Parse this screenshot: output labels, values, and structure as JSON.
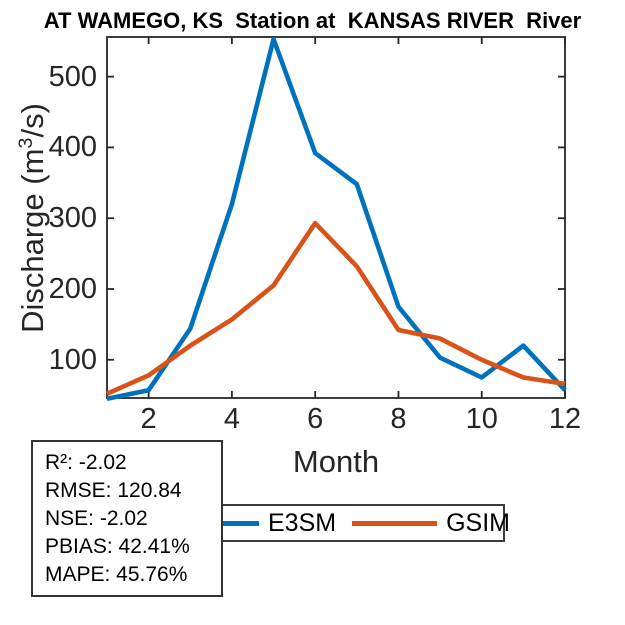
{
  "title": "AT WAMEGO, KS  Station at  KANSAS RIVER  River",
  "chart_data": {
    "type": "line",
    "title": "AT WAMEGO, KS  Station at  KANSAS RIVER  River",
    "x": [
      1,
      2,
      3,
      4,
      5,
      6,
      7,
      8,
      9,
      10,
      11,
      12
    ],
    "series": [
      {
        "name": "E3SM",
        "color": "#0072BD",
        "values": [
          45,
          57,
          144,
          320,
          553,
          392,
          348,
          175,
          103,
          75,
          120,
          57
        ]
      },
      {
        "name": "GSIM",
        "color": "#D95319",
        "values": [
          52,
          78,
          120,
          157,
          205,
          293,
          232,
          142,
          130,
          100,
          75,
          66
        ]
      }
    ],
    "xlabel": "Month",
    "ylabel": "Discharge (m3/s)",
    "ylabel_parts": {
      "pre": "Discharge (m",
      "sup": "3",
      "post": "/s)"
    },
    "xlim": [
      1,
      12
    ],
    "ylim": [
      46,
      556
    ],
    "x_ticks": [
      2,
      4,
      6,
      8,
      10,
      12
    ],
    "y_ticks": [
      100,
      200,
      300,
      400,
      500
    ],
    "grid": false,
    "legend_position": "below-axes-horizontal"
  },
  "legend": {
    "entries": [
      {
        "label": "E3SM",
        "color": "#0072BD"
      },
      {
        "label": "GSIM",
        "color": "#D95319"
      }
    ]
  },
  "stats_box": {
    "lines": [
      "R²: -2.02",
      "RMSE: 120.84",
      "NSE: -2.02",
      "PBIAS: 42.41%",
      "MAPE: 45.76%"
    ]
  },
  "colors": {
    "axis": "#262626",
    "series_blue": "#0072BD",
    "series_orange": "#D95319"
  }
}
